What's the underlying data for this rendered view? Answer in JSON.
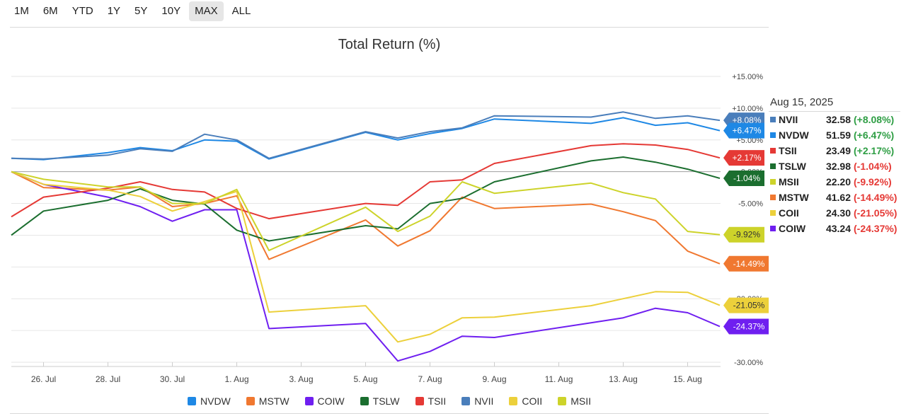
{
  "range_buttons": [
    {
      "label": "1M",
      "active": false
    },
    {
      "label": "6M",
      "active": false
    },
    {
      "label": "YTD",
      "active": false
    },
    {
      "label": "1Y",
      "active": false
    },
    {
      "label": "5Y",
      "active": false
    },
    {
      "label": "10Y",
      "active": false
    },
    {
      "label": "MAX",
      "active": true
    },
    {
      "label": "ALL",
      "active": false
    }
  ],
  "tooltip": {
    "date": "Aug 15, 2025",
    "rows": [
      {
        "name": "NVII",
        "value": "32.58",
        "change": "(+8.08%)",
        "color": "#4a7ebb",
        "change_color": "#2e9e44"
      },
      {
        "name": "NVDW",
        "value": "51.59",
        "change": "(+6.47%)",
        "color": "#1e88e5",
        "change_color": "#2e9e44"
      },
      {
        "name": "TSII",
        "value": "23.49",
        "change": "(+2.17%)",
        "color": "#e53935",
        "change_color": "#2e9e44"
      },
      {
        "name": "TSLW",
        "value": "32.98",
        "change": "(-1.04%)",
        "color": "#1b6e2f",
        "change_color": "#e53935"
      },
      {
        "name": "MSII",
        "value": "22.20",
        "change": "(-9.92%)",
        "color": "#cdd32a",
        "change_color": "#e53935"
      },
      {
        "name": "MSTW",
        "value": "41.62",
        "change": "(-14.49%)",
        "color": "#f07830",
        "change_color": "#e53935"
      },
      {
        "name": "COII",
        "value": "24.30",
        "change": "(-21.05%)",
        "color": "#ecd03b",
        "change_color": "#e53935"
      },
      {
        "name": "COIW",
        "value": "43.24",
        "change": "(-24.37%)",
        "color": "#6f1ff0",
        "change_color": "#e53935"
      }
    ]
  },
  "chart_data": {
    "type": "line",
    "title": "Total Return (%)",
    "x": [
      "25 Jul",
      "26 Jul",
      "27 Jul",
      "28 Jul",
      "29 Jul",
      "30 Jul",
      "31 Jul",
      "1 Aug",
      "2 Aug",
      "4 Aug",
      "5 Aug",
      "6 Aug",
      "7 Aug",
      "8 Aug",
      "9 Aug",
      "11 Aug",
      "12 Aug",
      "13 Aug",
      "14 Aug",
      "15 Aug",
      "16 Aug"
    ],
    "x_tick_labels": [
      "26. Jul",
      "28. Jul",
      "30. Jul",
      "1. Aug",
      "3. Aug",
      "5. Aug",
      "7. Aug",
      "9. Aug",
      "11. Aug",
      "13. Aug",
      "15. Aug"
    ],
    "y_tick_labels": [
      "+15.00%",
      "+10.00%",
      "+5.00%",
      "0.00%",
      "-5.00%",
      "-10.00%",
      "-15.00%",
      "-20.00%",
      "-25.00%",
      "-30.00%"
    ],
    "y_ticks": [
      15,
      10,
      5,
      0,
      -5,
      -10,
      -15,
      -20,
      -25,
      -30
    ],
    "ylim": [
      -30,
      15
    ],
    "series": [
      {
        "name": "NVDW",
        "color": "#1e88e5",
        "points": [
          [
            "2025-07-25",
            2.1
          ],
          [
            "2025-07-26",
            1.9
          ],
          [
            "2025-07-28",
            3.0
          ],
          [
            "2025-07-29",
            3.8
          ],
          [
            "2025-07-30",
            3.3
          ],
          [
            "2025-07-31",
            5.0
          ],
          [
            "2025-08-01",
            4.8
          ],
          [
            "2025-08-02",
            2.0
          ],
          [
            "2025-08-05",
            6.2
          ],
          [
            "2025-08-06",
            5.0
          ],
          [
            "2025-08-07",
            6.0
          ],
          [
            "2025-08-08",
            6.8
          ],
          [
            "2025-08-09",
            8.3
          ],
          [
            "2025-08-12",
            7.6
          ],
          [
            "2025-08-13",
            8.5
          ],
          [
            "2025-08-14",
            7.3
          ],
          [
            "2025-08-15",
            7.7
          ],
          [
            "2025-08-16",
            6.47
          ]
        ]
      },
      {
        "name": "MSTW",
        "color": "#f07830",
        "points": [
          [
            "2025-07-25",
            0.0
          ],
          [
            "2025-07-26",
            -2.5
          ],
          [
            "2025-07-28",
            -2.9
          ],
          [
            "2025-07-29",
            -2.4
          ],
          [
            "2025-07-30",
            -5.5
          ],
          [
            "2025-07-31",
            -5.0
          ],
          [
            "2025-08-01",
            -3.8
          ],
          [
            "2025-08-02",
            -13.8
          ],
          [
            "2025-08-05",
            -7.6
          ],
          [
            "2025-08-06",
            -11.7
          ],
          [
            "2025-08-07",
            -9.3
          ],
          [
            "2025-08-08",
            -4.0
          ],
          [
            "2025-08-09",
            -5.8
          ],
          [
            "2025-08-12",
            -5.1
          ],
          [
            "2025-08-13",
            -6.3
          ],
          [
            "2025-08-14",
            -7.7
          ],
          [
            "2025-08-15",
            -12.5
          ],
          [
            "2025-08-16",
            -14.49
          ]
        ]
      },
      {
        "name": "COIW",
        "color": "#6f1ff0",
        "points": [
          [
            "2025-07-25",
            0.0
          ],
          [
            "2025-07-26",
            -2.0
          ],
          [
            "2025-07-28",
            -4.0
          ],
          [
            "2025-07-29",
            -5.5
          ],
          [
            "2025-07-30",
            -7.8
          ],
          [
            "2025-07-31",
            -6.0
          ],
          [
            "2025-08-01",
            -6.0
          ],
          [
            "2025-08-02",
            -24.7
          ],
          [
            "2025-08-05",
            -23.9
          ],
          [
            "2025-08-06",
            -29.8
          ],
          [
            "2025-08-07",
            -28.3
          ],
          [
            "2025-08-08",
            -25.9
          ],
          [
            "2025-08-09",
            -26.1
          ],
          [
            "2025-08-12",
            -23.8
          ],
          [
            "2025-08-13",
            -23.0
          ],
          [
            "2025-08-14",
            -21.5
          ],
          [
            "2025-08-15",
            -22.2
          ],
          [
            "2025-08-16",
            -24.37
          ]
        ]
      },
      {
        "name": "TSLW",
        "color": "#1b6e2f",
        "points": [
          [
            "2025-07-25",
            -10.0
          ],
          [
            "2025-07-26",
            -6.2
          ],
          [
            "2025-07-28",
            -4.5
          ],
          [
            "2025-07-29",
            -2.7
          ],
          [
            "2025-07-30",
            -4.5
          ],
          [
            "2025-07-31",
            -5.1
          ],
          [
            "2025-08-01",
            -9.2
          ],
          [
            "2025-08-02",
            -10.9
          ],
          [
            "2025-08-05",
            -8.5
          ],
          [
            "2025-08-06",
            -9.0
          ],
          [
            "2025-08-07",
            -5.0
          ],
          [
            "2025-08-08",
            -4.2
          ],
          [
            "2025-08-09",
            -1.6
          ],
          [
            "2025-08-12",
            1.7
          ],
          [
            "2025-08-13",
            2.3
          ],
          [
            "2025-08-14",
            1.5
          ],
          [
            "2025-08-15",
            0.4
          ],
          [
            "2025-08-16",
            -1.04
          ]
        ]
      },
      {
        "name": "TSII",
        "color": "#e53935",
        "points": [
          [
            "2025-07-25",
            -7.1
          ],
          [
            "2025-07-26",
            -4.0
          ],
          [
            "2025-07-28",
            -2.6
          ],
          [
            "2025-07-29",
            -1.6
          ],
          [
            "2025-07-30",
            -2.8
          ],
          [
            "2025-07-31",
            -3.2
          ],
          [
            "2025-08-01",
            -5.8
          ],
          [
            "2025-08-02",
            -7.4
          ],
          [
            "2025-08-05",
            -5.0
          ],
          [
            "2025-08-06",
            -5.3
          ],
          [
            "2025-08-07",
            -1.6
          ],
          [
            "2025-08-08",
            -1.3
          ],
          [
            "2025-08-09",
            1.3
          ],
          [
            "2025-08-12",
            4.1
          ],
          [
            "2025-08-13",
            4.4
          ],
          [
            "2025-08-14",
            4.2
          ],
          [
            "2025-08-15",
            3.5
          ],
          [
            "2025-08-16",
            2.17
          ]
        ]
      },
      {
        "name": "NVII",
        "color": "#4a7ebb",
        "points": [
          [
            "2025-07-25",
            2.1
          ],
          [
            "2025-07-26",
            2.0
          ],
          [
            "2025-07-28",
            2.6
          ],
          [
            "2025-07-29",
            3.6
          ],
          [
            "2025-07-30",
            3.2
          ],
          [
            "2025-07-31",
            5.9
          ],
          [
            "2025-08-01",
            5.0
          ],
          [
            "2025-08-02",
            2.1
          ],
          [
            "2025-08-05",
            6.3
          ],
          [
            "2025-08-06",
            5.3
          ],
          [
            "2025-08-07",
            6.3
          ],
          [
            "2025-08-08",
            6.9
          ],
          [
            "2025-08-09",
            8.8
          ],
          [
            "2025-08-12",
            8.6
          ],
          [
            "2025-08-13",
            9.4
          ],
          [
            "2025-08-14",
            8.4
          ],
          [
            "2025-08-15",
            8.8
          ],
          [
            "2025-08-16",
            8.08
          ]
        ]
      },
      {
        "name": "COII",
        "color": "#ecd03b",
        "points": [
          [
            "2025-07-25",
            0.0
          ],
          [
            "2025-07-26",
            -2.0
          ],
          [
            "2025-07-28",
            -2.9
          ],
          [
            "2025-07-29",
            -3.9
          ],
          [
            "2025-07-30",
            -6.2
          ],
          [
            "2025-07-31",
            -4.7
          ],
          [
            "2025-08-01",
            -3.1
          ],
          [
            "2025-08-02",
            -22.1
          ],
          [
            "2025-08-05",
            -21.1
          ],
          [
            "2025-08-06",
            -26.8
          ],
          [
            "2025-08-07",
            -25.6
          ],
          [
            "2025-08-08",
            -23.0
          ],
          [
            "2025-08-09",
            -22.9
          ],
          [
            "2025-08-12",
            -21.1
          ],
          [
            "2025-08-13",
            -20.0
          ],
          [
            "2025-08-14",
            -18.9
          ],
          [
            "2025-08-15",
            -19.0
          ],
          [
            "2025-08-16",
            -21.05
          ]
        ]
      },
      {
        "name": "MSII",
        "color": "#cdd32a",
        "points": [
          [
            "2025-07-25",
            0.0
          ],
          [
            "2025-07-26",
            -1.2
          ],
          [
            "2025-07-28",
            -2.4
          ],
          [
            "2025-07-29",
            -2.4
          ],
          [
            "2025-07-30",
            -5.0
          ],
          [
            "2025-07-31",
            -5.0
          ],
          [
            "2025-08-01",
            -2.8
          ],
          [
            "2025-08-02",
            -12.4
          ],
          [
            "2025-08-05",
            -5.6
          ],
          [
            "2025-08-06",
            -9.4
          ],
          [
            "2025-08-07",
            -7.0
          ],
          [
            "2025-08-08",
            -1.6
          ],
          [
            "2025-08-09",
            -3.4
          ],
          [
            "2025-08-12",
            -1.8
          ],
          [
            "2025-08-13",
            -3.3
          ],
          [
            "2025-08-14",
            -4.3
          ],
          [
            "2025-08-15",
            -9.4
          ],
          [
            "2025-08-16",
            -9.92
          ]
        ]
      }
    ],
    "end_labels": [
      {
        "series": "NVII",
        "text": "+8.08%",
        "color": "#4a7ebb",
        "text_color": "#ffffff"
      },
      {
        "series": "NVDW",
        "text": "+6.47%",
        "color": "#1e88e5",
        "text_color": "#ffffff"
      },
      {
        "series": "TSII",
        "text": "+2.17%",
        "color": "#e53935",
        "text_color": "#ffffff"
      },
      {
        "series": "TSLW",
        "text": "-1.04%",
        "color": "#1b6e2f",
        "text_color": "#ffffff"
      },
      {
        "series": "MSII",
        "text": "-9.92%",
        "color": "#cdd32a",
        "text_color": "#333333"
      },
      {
        "series": "MSTW",
        "text": "-14.49%",
        "color": "#f07830",
        "text_color": "#ffffff"
      },
      {
        "series": "COII",
        "text": "-21.05%",
        "color": "#ecd03b",
        "text_color": "#333333"
      },
      {
        "series": "COIW",
        "text": "-24.37%",
        "color": "#6f1ff0",
        "text_color": "#ffffff"
      }
    ],
    "legend": [
      "NVDW",
      "MSTW",
      "COIW",
      "TSLW",
      "TSII",
      "NVII",
      "COII",
      "MSII"
    ],
    "grid": true,
    "legend_position": "bottom"
  }
}
